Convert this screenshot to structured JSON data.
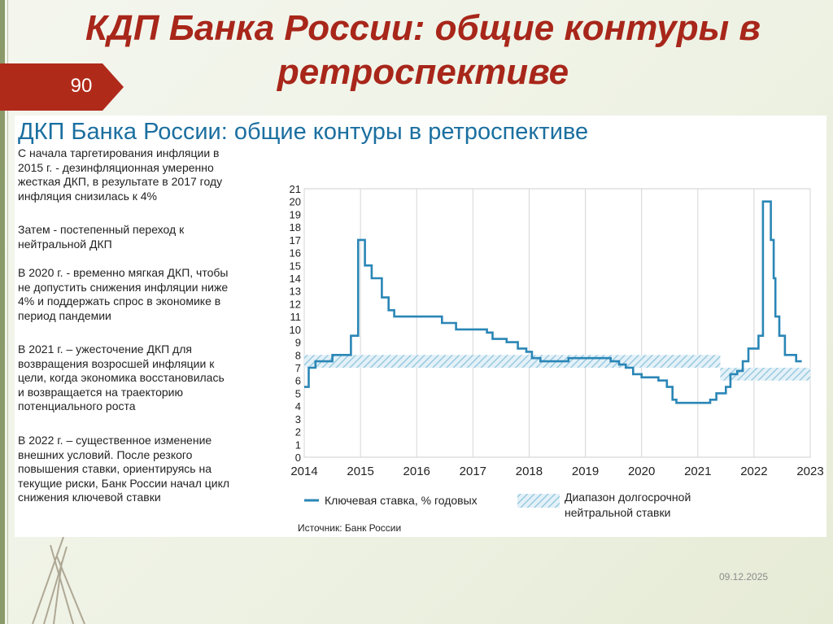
{
  "slide": {
    "title": "КДП Банка России: общие контуры в ретроспективе",
    "page_number": "90",
    "date": "09.12.2025"
  },
  "panel": {
    "title": "ДКП Банка России: общие контуры в ретроспективе",
    "paragraphs": [
      [
        "С начала таргетирования инфляции в",
        "2015 г.  - дезинфляционная умеренно",
        "жесткая ДКП, в результате в 2017 году",
        "инфляция снизилась к 4%"
      ],
      [
        "Затем - постепенный переход к",
        "нейтральной ДКП"
      ],
      [
        "В 2020 г. - временно мягкая ДКП, чтобы",
        "не допустить снижения инфляции ниже",
        "4% и поддержать спрос в экономике в",
        "период пандемии"
      ],
      [
        "В 2021 г. – ужесточение ДКП для",
        "возвращения возросшей инфляции к",
        "цели, когда экономика восстановилась",
        "и возвращается на траекторию",
        "потенциального роста"
      ],
      [
        "В 2022 г. – существенное изменение",
        "внешних условий. После резкого",
        "повышения ставки, ориентируясь на",
        "текущие риски, Банк России начал цикл",
        "снижения ключевой ставки"
      ]
    ],
    "source": "Источник: Банк России"
  },
  "chart_data": {
    "type": "line",
    "x_ticks": [
      "2014",
      "2015",
      "2016",
      "2017",
      "2018",
      "2019",
      "2020",
      "2021",
      "2022",
      "2023"
    ],
    "y_ticks": [
      "0",
      "1",
      "2",
      "3",
      "4",
      "5",
      "6",
      "7",
      "8",
      "9",
      "10",
      "11",
      "12",
      "13",
      "14",
      "15",
      "16",
      "17",
      "18",
      "19",
      "20",
      "21"
    ],
    "xlim": [
      2014,
      2023
    ],
    "ylim": [
      0,
      21
    ],
    "grid": true,
    "colors": {
      "line": "#2a86b6",
      "band": "#8cc3dc"
    },
    "series": [
      {
        "name": "Ключевая ставка, % годовых",
        "step": true,
        "points": [
          [
            2014.0,
            5.5
          ],
          [
            2014.08,
            7.0
          ],
          [
            2014.2,
            7.5
          ],
          [
            2014.5,
            8.0
          ],
          [
            2014.83,
            9.5
          ],
          [
            2014.96,
            17.0
          ],
          [
            2015.08,
            15.0
          ],
          [
            2015.2,
            14.0
          ],
          [
            2015.38,
            12.5
          ],
          [
            2015.5,
            11.5
          ],
          [
            2015.6,
            11.0
          ],
          [
            2016.45,
            10.5
          ],
          [
            2016.7,
            10.0
          ],
          [
            2017.25,
            9.75
          ],
          [
            2017.35,
            9.25
          ],
          [
            2017.6,
            9.0
          ],
          [
            2017.8,
            8.5
          ],
          [
            2017.95,
            8.25
          ],
          [
            2018.05,
            7.75
          ],
          [
            2018.2,
            7.5
          ],
          [
            2018.7,
            7.75
          ],
          [
            2018.95,
            7.75
          ],
          [
            2019.45,
            7.5
          ],
          [
            2019.6,
            7.25
          ],
          [
            2019.72,
            7.0
          ],
          [
            2019.85,
            6.5
          ],
          [
            2020.0,
            6.25
          ],
          [
            2020.3,
            6.0
          ],
          [
            2020.45,
            5.5
          ],
          [
            2020.55,
            4.5
          ],
          [
            2020.62,
            4.25
          ],
          [
            2021.22,
            4.5
          ],
          [
            2021.33,
            5.0
          ],
          [
            2021.5,
            5.5
          ],
          [
            2021.58,
            6.5
          ],
          [
            2021.7,
            6.75
          ],
          [
            2021.8,
            7.5
          ],
          [
            2021.9,
            8.5
          ],
          [
            2022.08,
            9.5
          ],
          [
            2022.16,
            20.0
          ],
          [
            2022.3,
            17.0
          ],
          [
            2022.35,
            14.0
          ],
          [
            2022.38,
            11.0
          ],
          [
            2022.45,
            9.5
          ],
          [
            2022.55,
            8.0
          ],
          [
            2022.75,
            7.5
          ],
          [
            2022.85,
            7.5
          ]
        ]
      },
      {
        "name": "Диапазон долгосрочной нейтральной ставки",
        "type": "band",
        "segments": [
          {
            "x": [
              2014.0,
              2021.4
            ],
            "y": [
              7.0,
              8.0
            ]
          },
          {
            "x": [
              2021.4,
              2023.0
            ],
            "y": [
              6.0,
              7.0
            ]
          }
        ]
      }
    ],
    "legend": {
      "position": "bottom",
      "line_label": "Ключевая ставка, % годовых",
      "band_label": [
        "Диапазон долгосрочной",
        "нейтральной ставки"
      ]
    }
  }
}
